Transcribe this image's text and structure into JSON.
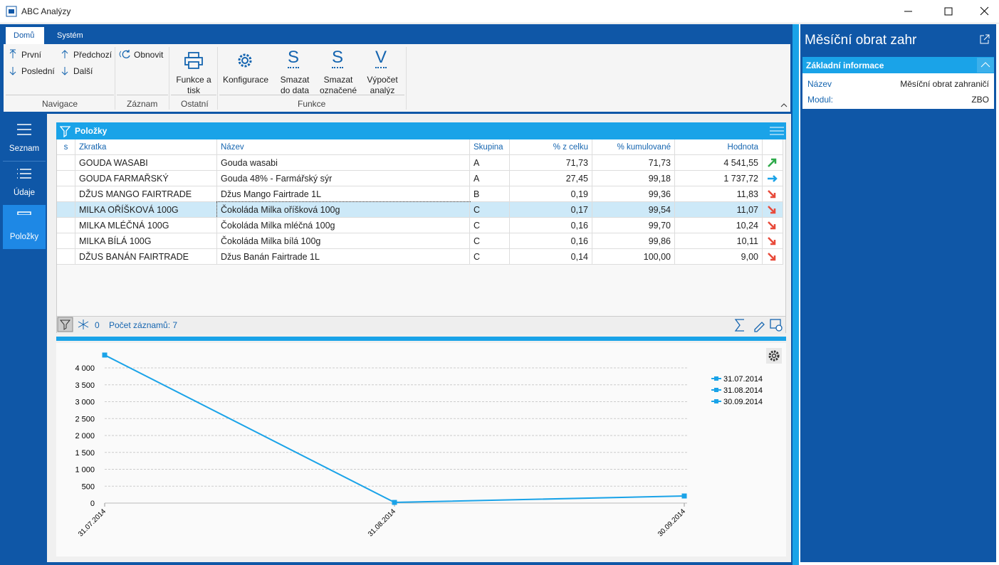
{
  "window": {
    "title": "ABC Analýzy"
  },
  "ribbon": {
    "tabs": [
      "Domů",
      "Systém"
    ],
    "groups": [
      {
        "label": "Navigace",
        "buttons": [
          "První",
          "Předchozí",
          "Poslední",
          "Další"
        ]
      },
      {
        "label": "Záznam",
        "buttons": [
          "Obnovit"
        ]
      },
      {
        "label": "Ostatní",
        "buttons": [
          "Funkce a tisk"
        ]
      },
      {
        "label": "Funkce",
        "buttons": [
          "Konfigurace",
          "Smazat do data",
          "Smazat označené",
          "Výpočet analýz"
        ],
        "icon_letters": [
          "S",
          "S",
          "V"
        ]
      }
    ]
  },
  "sidebar": [
    "Seznam",
    "Údaje",
    "Položky"
  ],
  "panel": {
    "title": "Položky",
    "columns": [
      "s",
      "Zkratka",
      "Název",
      "Skupina",
      "% z celku",
      "% kumulované",
      "Hodnota"
    ],
    "rows": [
      [
        "GOUDA WASABI",
        "Gouda wasabi",
        "A",
        "71,73",
        "71,73",
        "4 541,55"
      ],
      [
        "GOUDA FARMAŘSKÝ",
        "Gouda 48% - Farmářský sýr",
        "A",
        "27,45",
        "99,18",
        "1 737,72"
      ],
      [
        "DŽUS MANGO FAIRTRADE",
        "Džus Mango Fairtrade 1L",
        "B",
        "0,19",
        "99,36",
        "11,83"
      ],
      [
        "MILKA OŘÍŠKOVÁ 100G",
        "Čokoláda Milka oříšková 100g",
        "C",
        "0,17",
        "99,54",
        "11,07"
      ],
      [
        "MILKA MLÉČNÁ 100G",
        "Čokoláda Milka mléčná 100g",
        "C",
        "0,16",
        "99,70",
        "10,24"
      ],
      [
        "MILKA BÍLÁ 100G",
        "Čokoláda Milka bílá 100g",
        "C",
        "0,16",
        "99,86",
        "10,11"
      ],
      [
        "DŽUS BANÁN FAIRTRADE",
        "Džus Banán Fairtrade 1L",
        "C",
        "0,14",
        "100,00",
        "9,00"
      ]
    ],
    "filter_count": 0,
    "record_count": "Počet záznamů: 7"
  },
  "chart_data": {
    "type": "line",
    "categories": [
      "31.07.2014",
      "31.08.2014",
      "30.09.2014"
    ],
    "values": [
      4380,
      20,
      210
    ],
    "color": "#1aa3e8",
    "legend": [
      "31.07.2014",
      "31.08.2014",
      "30.09.2014"
    ],
    "ylim": [
      0,
      4400
    ],
    "yticks": [
      0,
      {
        "value": 500,
        "label": "500"
      },
      {
        "value": 1000,
        "label": "1 000"
      },
      {
        "value": 1500,
        "label": "1 500"
      },
      {
        "value": 2000,
        "label": "2 000"
      },
      {
        "value": 2500,
        "label": "2 500"
      },
      {
        "value": 3000,
        "label": "3 000"
      },
      {
        "value": 3500,
        "label": "3 500"
      },
      {
        "value": 4000,
        "label": "4 000"
      }
    ],
    "grid": true
  },
  "detail": {
    "title": "Měsíční obrat zahr",
    "section": "Základní informace",
    "fields": [
      {
        "label": "Název",
        "value": "Měsíční obrat zahraničí"
      },
      {
        "label": "Modul:",
        "value": "ZBO"
      }
    ]
  }
}
